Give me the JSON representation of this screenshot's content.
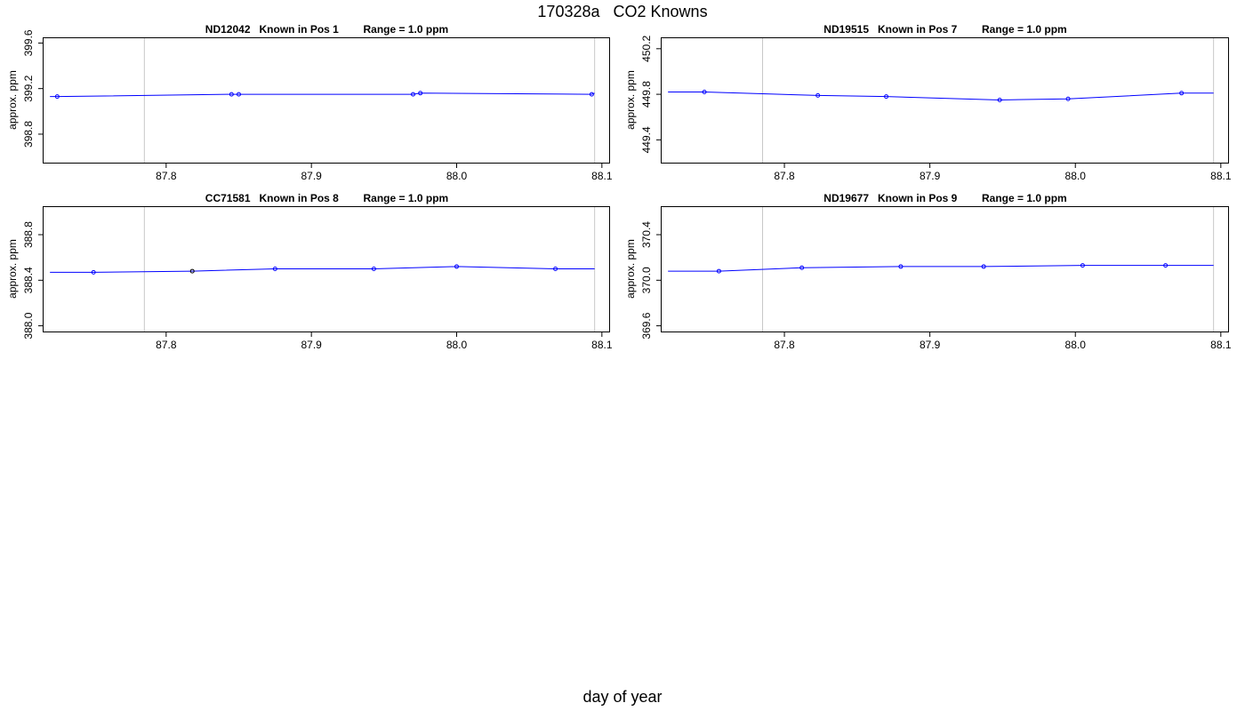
{
  "title_id": "170328a",
  "title_text": "CO2 Knowns",
  "xlabel": "day of year",
  "colors": {
    "line": "#0000ff",
    "frame": "#000000",
    "vline": "#c8c8c8",
    "highlight_point": "#000000"
  },
  "chart_data": [
    {
      "type": "line",
      "cylinder": "ND12042",
      "position_label": "Known in Pos 1",
      "range_label": "Range = 1.0 ppm",
      "ylabel": "approx. ppm",
      "xlim": [
        87.715,
        88.105
      ],
      "ylim": [
        398.55,
        399.65
      ],
      "xticks": [
        "87.8",
        "87.9",
        "88.0",
        "88.1"
      ],
      "yticks": [
        "398.8",
        "399.2",
        "399.6"
      ],
      "vlines": [
        87.785,
        88.095
      ],
      "line": {
        "x": [
          87.72,
          88.095
        ],
        "y": [
          399.13,
          399.16
        ]
      },
      "points": [
        {
          "x": 87.725,
          "y": 399.13
        },
        {
          "x": 87.845,
          "y": 399.15
        },
        {
          "x": 87.85,
          "y": 399.15
        },
        {
          "x": 87.97,
          "y": 399.15
        },
        {
          "x": 87.975,
          "y": 399.16
        },
        {
          "x": 88.093,
          "y": 399.15
        }
      ]
    },
    {
      "type": "line",
      "cylinder": "ND19515",
      "position_label": "Known in Pos 7",
      "range_label": "Range = 1.0 ppm",
      "ylabel": "approx. ppm",
      "xlim": [
        87.715,
        88.105
      ],
      "ylim": [
        449.2,
        450.3
      ],
      "xticks": [
        "87.8",
        "87.9",
        "88.0",
        "88.1"
      ],
      "yticks": [
        "449.4",
        "449.8",
        "450.2"
      ],
      "vlines": [
        87.785,
        88.095
      ],
      "line": {
        "x": [
          87.72,
          88.095
        ],
        "y": [
          449.82,
          449.81
        ]
      },
      "points": [
        {
          "x": 87.745,
          "y": 449.82
        },
        {
          "x": 87.823,
          "y": 449.79
        },
        {
          "x": 87.87,
          "y": 449.78
        },
        {
          "x": 87.948,
          "y": 449.75
        },
        {
          "x": 87.995,
          "y": 449.76
        },
        {
          "x": 88.073,
          "y": 449.81
        }
      ]
    },
    {
      "type": "line",
      "cylinder": "CC71581",
      "position_label": "Known in Pos 8",
      "range_label": "Range = 1.0 ppm",
      "ylabel": "approx. ppm",
      "xlim": [
        87.715,
        88.105
      ],
      "ylim": [
        387.95,
        389.05
      ],
      "xticks": [
        "87.8",
        "87.9",
        "88.0",
        "88.1"
      ],
      "yticks": [
        "388.0",
        "388.4",
        "388.8"
      ],
      "vlines": [
        87.785,
        88.095
      ],
      "line": {
        "x": [
          87.72,
          88.095
        ],
        "y": [
          388.47,
          388.5
        ]
      },
      "points": [
        {
          "x": 87.75,
          "y": 388.47
        },
        {
          "x": 87.818,
          "y": 388.48,
          "highlight": true
        },
        {
          "x": 87.875,
          "y": 388.5
        },
        {
          "x": 87.943,
          "y": 388.5
        },
        {
          "x": 88.0,
          "y": 388.52
        },
        {
          "x": 88.068,
          "y": 388.5
        }
      ]
    },
    {
      "type": "line",
      "cylinder": "ND19677",
      "position_label": "Known in Pos 9",
      "range_label": "Range = 1.0 ppm",
      "ylabel": "approx. ppm",
      "xlim": [
        87.715,
        88.105
      ],
      "ylim": [
        369.55,
        370.65
      ],
      "xticks": [
        "87.8",
        "87.9",
        "88.0",
        "88.1"
      ],
      "yticks": [
        "369.6",
        "370.0",
        "370.4"
      ],
      "vlines": [
        87.785,
        88.095
      ],
      "line": {
        "x": [
          87.72,
          88.095
        ],
        "y": [
          370.08,
          370.13
        ]
      },
      "points": [
        {
          "x": 87.755,
          "y": 370.08
        },
        {
          "x": 87.812,
          "y": 370.11
        },
        {
          "x": 87.88,
          "y": 370.12
        },
        {
          "x": 87.937,
          "y": 370.12
        },
        {
          "x": 88.005,
          "y": 370.13
        },
        {
          "x": 88.062,
          "y": 370.13
        }
      ]
    }
  ]
}
